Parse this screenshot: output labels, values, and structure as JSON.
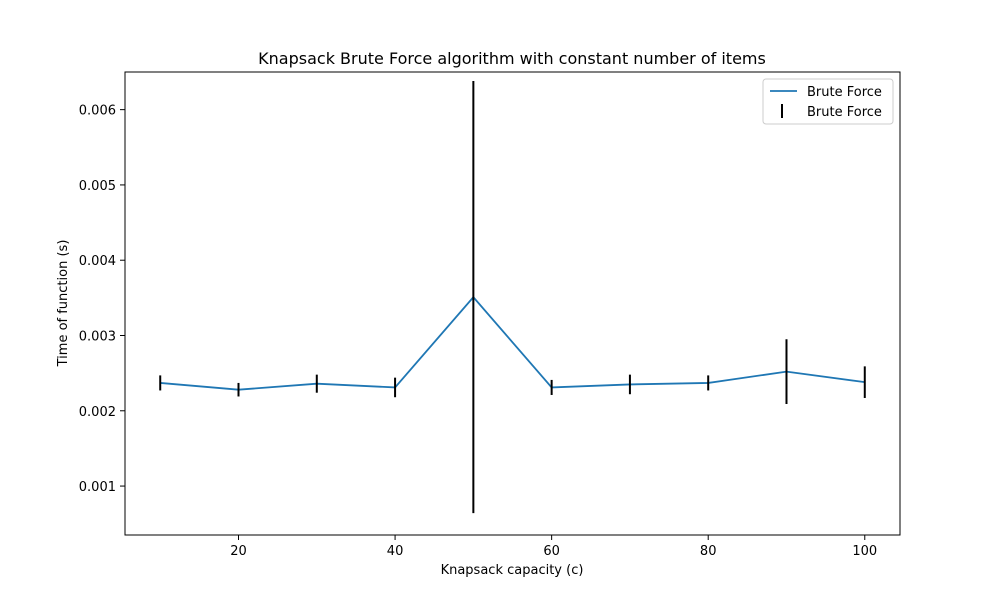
{
  "chart_data": {
    "type": "line",
    "title": "Knapsack Brute Force algorithm with constant number of items",
    "xlabel": "Knapsack capacity (c)",
    "ylabel": "Time of function (s)",
    "xlim": [
      5.5,
      104.5
    ],
    "ylim": [
      0.00035,
      0.0065
    ],
    "xticks": [
      20,
      40,
      60,
      80,
      100
    ],
    "yticks": [
      0.001,
      0.002,
      0.003,
      0.004,
      0.005,
      0.006
    ],
    "ytick_labels": [
      "0.001",
      "0.002",
      "0.003",
      "0.004",
      "0.005",
      "0.006"
    ],
    "grid": false,
    "legend_position": "top-right",
    "legend": [
      "Brute Force",
      "Brute Force"
    ],
    "line_color": "#1f77b4",
    "errorbar_color": "#000000",
    "series": [
      {
        "name": "Brute Force",
        "x": [
          10,
          20,
          30,
          40,
          50,
          60,
          70,
          80,
          90,
          100
        ],
        "y": [
          0.00237,
          0.00228,
          0.00236,
          0.00231,
          0.00351,
          0.00231,
          0.00235,
          0.00237,
          0.00252,
          0.00238
        ],
        "yerr": [
          0.0001,
          9e-05,
          0.00012,
          0.00013,
          0.00287,
          0.0001,
          0.00013,
          0.0001,
          0.00043,
          0.00021
        ]
      }
    ]
  }
}
